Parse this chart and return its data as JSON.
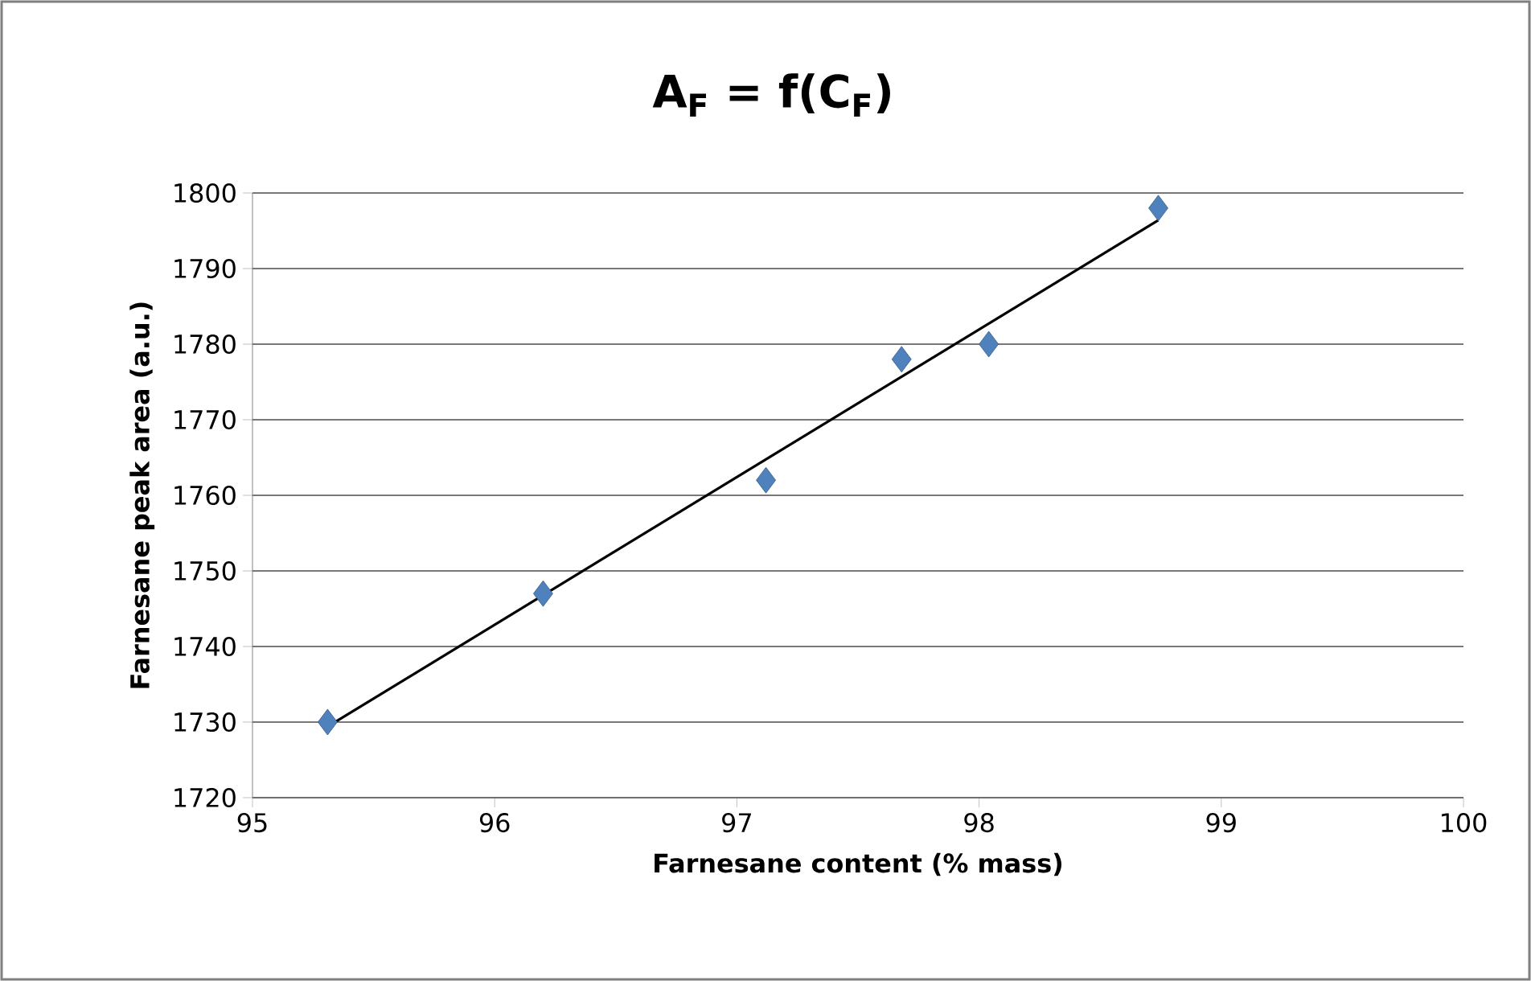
{
  "chart_data": {
    "type": "scatter",
    "title": "A$_{F}$ = f(C$_{F}$)",
    "xlabel": "Farnesane content (% mass)",
    "ylabel": "Farnesane peak area (a.u.)",
    "xlim": [
      95,
      100
    ],
    "xticks": [
      95,
      96,
      97,
      98,
      99,
      100
    ],
    "ylim": [
      1720,
      1800
    ],
    "yticks": [
      1720,
      1730,
      1740,
      1750,
      1760,
      1770,
      1780,
      1790,
      1800
    ],
    "grid": "y",
    "series": [
      {
        "color": "#4f81bd",
        "marker": "diamond",
        "x": [
          95.31,
          96.2,
          97.12,
          97.68,
          98.04,
          98.74
        ],
        "values": [
          1730,
          1747,
          1762,
          1778,
          1780,
          1798
        ]
      },
      {
        "type": "line",
        "color": "#000000",
        "marker": "none",
        "line_style": "solid",
        "x": [
          95.31,
          98.74
        ],
        "values": [
          1729.4,
          1796.4
        ]
      }
    ]
  }
}
